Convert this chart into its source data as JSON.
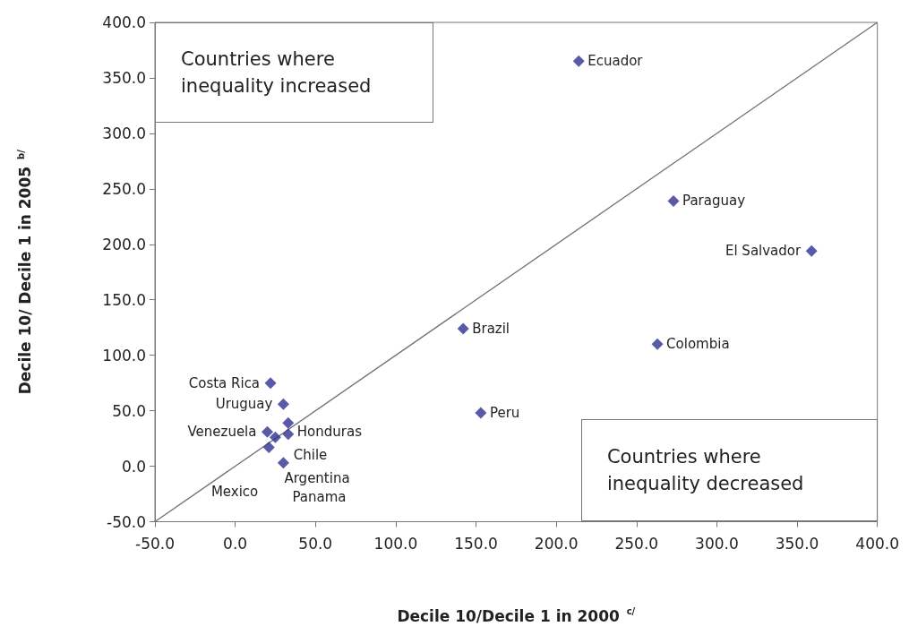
{
  "chart_data": {
    "type": "scatter",
    "xlabel": "Decile 10/Decile 1 in 2000 $^{c/}$",
    "ylabel": "Decile 10/ Decile 1 in 2005 $^{b/}$",
    "marker": "diamond",
    "grid": false,
    "xlim": [
      -50,
      400
    ],
    "ylim": [
      -50,
      400
    ],
    "xticks": [
      {
        "value": -50,
        "label": "-50.0"
      },
      {
        "value": 0,
        "label": "0.0"
      },
      {
        "value": 50,
        "label": "50.0"
      },
      {
        "value": 100,
        "label": "100.0"
      },
      {
        "value": 150,
        "label": "150.0"
      },
      {
        "value": 200,
        "label": "200.0"
      },
      {
        "value": 250,
        "label": "250.0"
      },
      {
        "value": 300,
        "label": "300.0"
      },
      {
        "value": 350,
        "label": "350.0"
      },
      {
        "value": 400,
        "label": "400.0"
      }
    ],
    "yticks": [
      {
        "value": -50,
        "label": "-50.0"
      },
      {
        "value": 0,
        "label": "0.0"
      },
      {
        "value": 50,
        "label": "50.0"
      },
      {
        "value": 100,
        "label": "100.0"
      },
      {
        "value": 150,
        "label": "150.0"
      },
      {
        "value": 200,
        "label": "200.0"
      },
      {
        "value": 250,
        "label": "250.0"
      },
      {
        "value": 300,
        "label": "300.0"
      },
      {
        "value": 350,
        "label": "350.0"
      },
      {
        "value": 400,
        "label": "400.0"
      }
    ],
    "series": [
      {
        "type": "scatter",
        "color": "#2e3192",
        "x": [
          214,
          273,
          359,
          142,
          263,
          153,
          22,
          30,
          33,
          20,
          33,
          25,
          21,
          30
        ],
        "values": [
          365,
          239,
          194,
          124,
          110,
          48,
          75,
          56,
          39,
          31,
          29,
          26,
          17,
          3
        ]
      },
      {
        "type": "line",
        "color": "#707070",
        "marker": "none",
        "x": [
          -50,
          400
        ],
        "values": [
          -50,
          400
        ]
      }
    ],
    "annotations": [
      "Countries where\ninequality increased",
      "Countries where\ninequality decreased",
      {
        "text": "Ecuador",
        "x": 214,
        "y": 365
      },
      {
        "text": "Paraguay",
        "x": 273,
        "y": 239
      },
      {
        "text": "El Salvador",
        "x": 359,
        "y": 194
      },
      {
        "text": "Brazil",
        "x": 142,
        "y": 124
      },
      {
        "text": "Colombia",
        "x": 263,
        "y": 110
      },
      {
        "text": "Peru",
        "x": 153,
        "y": 48
      },
      {
        "text": "Costa Rica",
        "x": 22,
        "y": 75
      },
      {
        "text": "Uruguay",
        "x": 30,
        "y": 56
      },
      {
        "text": "Honduras",
        "x": 33,
        "y": 39
      },
      {
        "text": "Venezuela",
        "x": 20,
        "y": 31
      },
      {
        "text": "Chile",
        "x": 33,
        "y": 29
      },
      {
        "text": "Argentina",
        "x": 25,
        "y": 26
      },
      {
        "text": "Mexico",
        "x": 21,
        "y": 17
      },
      {
        "text": "Panama",
        "x": 30,
        "y": 3
      }
    ]
  }
}
